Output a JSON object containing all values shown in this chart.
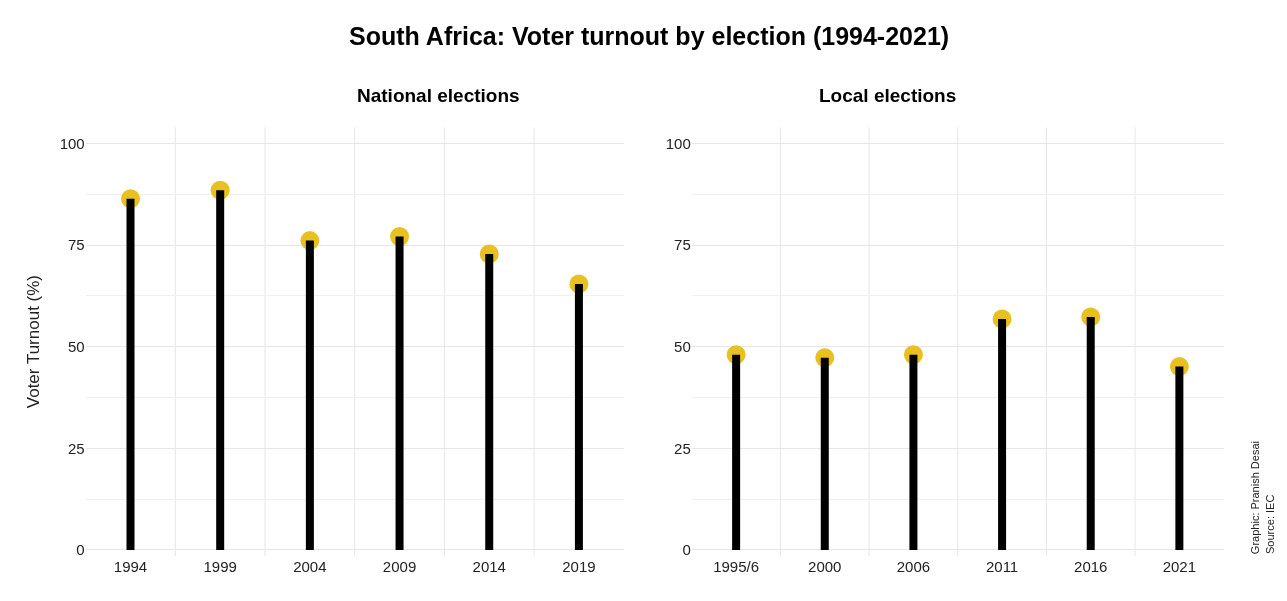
{
  "chart_data": [
    {
      "type": "lollipop",
      "title": "South Africa: Voter turnout by election (1994-2021)",
      "subtitle": "National elections",
      "ylabel": "Voter Turnout (%)",
      "categories": [
        "1994",
        "1999",
        "2004",
        "2009",
        "2014",
        "2019"
      ],
      "values": [
        86.4,
        88.5,
        76.1,
        77.1,
        72.8,
        65.4
      ],
      "color": "#e8c020",
      "ylim": [
        -1.5,
        104
      ],
      "yticks": [
        0,
        25,
        50,
        75,
        100
      ],
      "grid": true
    },
    {
      "type": "lollipop",
      "title": "Local elections",
      "categories": [
        "1995/6",
        "2000",
        "2006",
        "2011",
        "2016",
        "2021"
      ],
      "values": [
        48.0,
        47.3,
        48.0,
        56.8,
        57.3,
        45.1
      ],
      "color": "#e8c020",
      "ylim": [
        -1.5,
        104
      ],
      "yticks": [
        0,
        25,
        50,
        75,
        100
      ],
      "grid": true,
      "annotations": [
        "Source: IEC",
        "Graphic: Pranish Desai"
      ]
    }
  ]
}
